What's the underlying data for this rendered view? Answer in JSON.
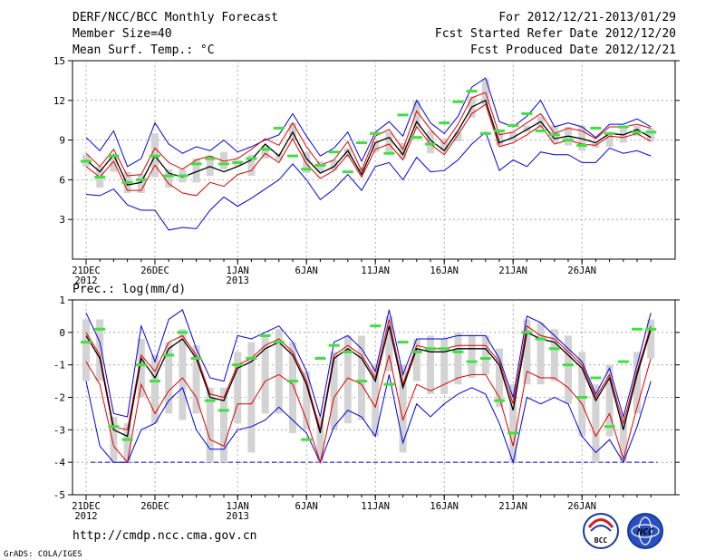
{
  "header": {
    "line1_left": "DERF/NCC/BCC Monthly Forecast",
    "line2_left": "Member Size=40",
    "line3_left": "Mean Surf. Temp.: °C",
    "line1_right": "For 2012/12/21-2013/01/29",
    "line2_right": "Fcst Started Refer Date 2012/12/20",
    "line3_right": "Fcst Produced Date 2012/12/21"
  },
  "precip_label": "Prec.: log(mm/d)",
  "footer": {
    "url": "http://cmdp.ncc.cma.gov.cn",
    "credit": "GrADS: COLA/IGES",
    "logo1_text": "BCC",
    "logo2_text": "NCC"
  },
  "colors": {
    "mean": "#000000",
    "envelope": "#0000e0",
    "quantile": "#e00000",
    "box": "#d3d3d3",
    "marker": "#40e040",
    "dashed": "#0000cc"
  },
  "chart_data": [
    {
      "type": "line",
      "title": "Mean Surf. Temp.: °C",
      "ylim": [
        0,
        15
      ],
      "yticks": [
        3,
        6,
        9,
        12,
        15
      ],
      "x_days": 40,
      "xtick_labels": [
        {
          "day": 0,
          "label": "21DEC",
          "sub": "2012"
        },
        {
          "day": 5,
          "label": "26DEC",
          "sub": ""
        },
        {
          "day": 11,
          "label": "1JAN",
          "sub": "2013"
        },
        {
          "day": 16,
          "label": "6JAN",
          "sub": ""
        },
        {
          "day": 21,
          "label": "11JAN",
          "sub": ""
        },
        {
          "day": 26,
          "label": "16JAN",
          "sub": ""
        },
        {
          "day": 31,
          "label": "21JAN",
          "sub": ""
        },
        {
          "day": 36,
          "label": "26JAN",
          "sub": ""
        }
      ],
      "series": [
        {
          "name": "max",
          "values": [
            9.2,
            8.2,
            9.7,
            7.0,
            7.6,
            10.3,
            8.7,
            8.0,
            8.5,
            8.2,
            9.0,
            8.1,
            8.5,
            9.0,
            9.4,
            11.0,
            9.3,
            7.8,
            8.4,
            9.6,
            7.4,
            9.6,
            10.4,
            9.3,
            12.0,
            10.3,
            9.5,
            10.8,
            13.0,
            13.7,
            10.4,
            10.0,
            10.8,
            12.0,
            10.0,
            10.3,
            10.0,
            9.2,
            10.2,
            10.2,
            10.6,
            10.0
          ]
        },
        {
          "name": "upper",
          "values": [
            8.0,
            7.0,
            8.3,
            6.3,
            6.4,
            8.4,
            7.3,
            6.8,
            7.5,
            7.8,
            7.4,
            7.6,
            8.3,
            9.1,
            8.6,
            10.3,
            8.5,
            7.1,
            7.5,
            8.9,
            6.7,
            9.3,
            9.8,
            8.3,
            11.2,
            9.8,
            8.7,
            10.2,
            12.2,
            12.6,
            9.4,
            9.6,
            10.3,
            11.0,
            9.5,
            9.9,
            9.7,
            9.1,
            10.0,
            10.0,
            10.2,
            9.9
          ]
        },
        {
          "name": "mean",
          "values": [
            7.5,
            6.6,
            7.9,
            5.6,
            5.8,
            7.8,
            6.5,
            6.2,
            6.6,
            7.0,
            6.6,
            7.0,
            7.5,
            8.7,
            7.8,
            9.6,
            7.6,
            6.5,
            7.0,
            8.2,
            6.4,
            8.8,
            9.2,
            7.9,
            10.4,
            9.0,
            8.2,
            9.7,
            11.5,
            12.0,
            8.8,
            9.2,
            9.8,
            10.4,
            9.1,
            9.3,
            9.1,
            8.8,
            9.5,
            9.4,
            9.8,
            9.2
          ]
        },
        {
          "name": "lower",
          "values": [
            7.0,
            6.2,
            7.4,
            5.2,
            5.2,
            7.1,
            5.7,
            5.0,
            4.8,
            5.8,
            5.5,
            6.4,
            6.7,
            8.0,
            7.3,
            9.1,
            7.2,
            6.1,
            6.7,
            7.9,
            6.2,
            8.3,
            8.7,
            7.5,
            10.0,
            8.7,
            7.9,
            9.4,
            11.0,
            11.7,
            8.5,
            8.8,
            9.4,
            10.1,
            8.7,
            9.0,
            8.7,
            8.6,
            9.3,
            9.2,
            9.5,
            8.9
          ]
        },
        {
          "name": "min",
          "values": [
            4.9,
            4.8,
            5.3,
            4.1,
            3.7,
            3.7,
            2.2,
            2.4,
            2.3,
            3.7,
            4.7,
            4.0,
            4.6,
            5.3,
            6.0,
            7.2,
            6.0,
            4.5,
            5.3,
            6.4,
            5.2,
            7.0,
            7.3,
            6.0,
            7.7,
            6.6,
            6.7,
            7.5,
            8.7,
            9.6,
            6.7,
            7.5,
            7.0,
            8.1,
            7.9,
            7.9,
            7.3,
            7.3,
            8.4,
            8.0,
            8.2,
            7.8
          ]
        },
        {
          "name": "q75",
          "values": [
            7.9,
            7.0,
            7.9,
            6.6,
            6.4,
            9.5,
            6.8,
            6.8,
            7.6,
            7.8,
            8.1,
            7.5,
            7.9,
            8.6,
            7.5,
            10.3,
            8.1,
            7.4,
            7.5,
            8.4,
            6.9,
            8.9,
            9.6,
            8.8,
            12.0,
            9.7,
            9.1,
            9.6,
            12.3,
            13.6,
            9.8,
            9.6,
            10.1,
            10.8,
            10.1,
            10.0,
            10.1,
            8.8,
            9.6,
            10.0,
            10.1,
            9.9
          ]
        },
        {
          "name": "q25",
          "values": [
            7.0,
            5.4,
            6.6,
            5.0,
            5.0,
            6.2,
            5.4,
            5.8,
            5.8,
            6.3,
            6.8,
            7.0,
            6.3,
            7.6,
            8.0,
            9.0,
            6.5,
            6.6,
            6.7,
            7.7,
            6.6,
            8.1,
            8.0,
            7.6,
            9.9,
            8.0,
            8.2,
            8.9,
            10.7,
            11.7,
            8.6,
            8.9,
            9.6,
            9.9,
            8.8,
            8.6,
            8.2,
            8.4,
            8.5,
            8.8,
            9.3,
            8.9
          ]
        },
        {
          "name": "median",
          "values": [
            7.4,
            6.2,
            7.8,
            5.8,
            6.0,
            7.8,
            6.3,
            6.3,
            7.2,
            7.6,
            7.2,
            7.3,
            7.6,
            8.3,
            9.9,
            7.8,
            6.8,
            7.1,
            8.1,
            6.6,
            8.8,
            9.5,
            8.0,
            10.9,
            9.2,
            8.7,
            10.3,
            11.9,
            12.7,
            9.5,
            9.7,
            10.1,
            11.0,
            9.7,
            9.4,
            9.0,
            8.6,
            9.9,
            9.5,
            10.0,
            9.6,
            9.6
          ]
        }
      ]
    },
    {
      "type": "line",
      "title": "Prec.: log(mm/d)",
      "ylim": [
        -5,
        1
      ],
      "yticks": [
        -5,
        -4,
        -3,
        -2,
        -1,
        0,
        1
      ],
      "dashed_line": -4,
      "x_days": 40,
      "xtick_labels": [
        {
          "day": 0,
          "label": "21DEC",
          "sub": "2012"
        },
        {
          "day": 5,
          "label": "26DEC",
          "sub": ""
        },
        {
          "day": 11,
          "label": "1JAN",
          "sub": "2013"
        },
        {
          "day": 16,
          "label": "6JAN",
          "sub": ""
        },
        {
          "day": 21,
          "label": "11JAN",
          "sub": ""
        },
        {
          "day": 26,
          "label": "16JAN",
          "sub": ""
        },
        {
          "day": 31,
          "label": "21JAN",
          "sub": ""
        },
        {
          "day": 36,
          "label": "26JAN",
          "sub": ""
        }
      ],
      "series": [
        {
          "name": "max",
          "values": [
            0.6,
            -0.3,
            -2.5,
            -2.6,
            0.2,
            -0.9,
            0.4,
            0.7,
            -0.5,
            -1.4,
            -1.5,
            -0.1,
            -0.2,
            0.0,
            0.2,
            -0.3,
            -1.2,
            -2.6,
            -0.3,
            -0.1,
            -0.5,
            -1.2,
            0.7,
            -1.3,
            -0.2,
            -0.2,
            -0.2,
            -0.1,
            -0.1,
            -0.1,
            -0.8,
            -2.0,
            0.5,
            0.3,
            -0.1,
            -0.5,
            -0.9,
            -1.9,
            -1.1,
            -2.6,
            -1.0,
            0.6
          ]
        },
        {
          "name": "upper",
          "values": [
            0.0,
            -0.7,
            -2.9,
            -3.0,
            -0.7,
            -1.2,
            -0.3,
            -0.1,
            -0.7,
            -1.9,
            -2.0,
            -1.0,
            -0.8,
            -0.4,
            -0.2,
            -0.6,
            -1.5,
            -3.0,
            -0.7,
            -0.4,
            -0.7,
            -1.4,
            0.4,
            -1.6,
            -0.4,
            -0.5,
            -0.5,
            -0.4,
            -0.4,
            -0.4,
            -0.9,
            -2.2,
            0.2,
            -0.1,
            -0.2,
            -0.6,
            -1.0,
            -2.0,
            -1.3,
            -2.8,
            -1.2,
            0.2
          ]
        },
        {
          "name": "mean",
          "values": [
            -0.1,
            -0.8,
            -3.0,
            -3.2,
            -0.8,
            -1.4,
            -0.5,
            -0.2,
            -0.8,
            -2.0,
            -2.1,
            -1.1,
            -0.9,
            -0.5,
            -0.3,
            -0.7,
            -1.6,
            -3.1,
            -0.8,
            -0.5,
            -0.8,
            -1.5,
            0.2,
            -1.7,
            -0.5,
            -0.6,
            -0.6,
            -0.5,
            -0.5,
            -0.5,
            -1.0,
            -2.4,
            0.0,
            -0.2,
            -0.3,
            -0.7,
            -1.1,
            -2.1,
            -1.4,
            -3.0,
            -1.3,
            0.1
          ]
        },
        {
          "name": "lower",
          "values": [
            -0.9,
            -1.6,
            -3.5,
            -4.0,
            -1.6,
            -2.5,
            -1.8,
            -1.4,
            -2.0,
            -3.3,
            -3.5,
            -2.2,
            -2.2,
            -1.5,
            -1.3,
            -1.6,
            -2.7,
            -4.0,
            -2.0,
            -1.4,
            -1.6,
            -2.3,
            -0.7,
            -2.7,
            -1.6,
            -1.8,
            -1.6,
            -1.4,
            -1.3,
            -1.3,
            -2.0,
            -3.5,
            -1.2,
            -1.4,
            -1.4,
            -1.7,
            -2.2,
            -3.2,
            -2.5,
            -3.9,
            -2.3,
            -0.8
          ]
        },
        {
          "name": "min",
          "values": [
            -1.5,
            -3.5,
            -4.0,
            -4.0,
            -3.0,
            -2.8,
            -2.1,
            -1.7,
            -3.0,
            -3.6,
            -3.6,
            -3.0,
            -2.9,
            -2.7,
            -2.3,
            -2.7,
            -3.1,
            -4.0,
            -2.9,
            -2.4,
            -2.6,
            -3.2,
            -1.3,
            -3.4,
            -2.2,
            -2.6,
            -2.2,
            -1.9,
            -1.7,
            -1.9,
            -2.8,
            -4.0,
            -2.0,
            -2.2,
            -2.0,
            -2.2,
            -3.2,
            -3.7,
            -3.3,
            -4.0,
            -2.9,
            -1.5
          ]
        },
        {
          "name": "q75",
          "values": [
            0.4,
            0.4,
            -2.6,
            -2.8,
            -0.2,
            -0.7,
            -0.3,
            0.1,
            -0.4,
            -1.7,
            -1.7,
            -0.6,
            -0.3,
            -0.1,
            0.1,
            -0.3,
            -1.2,
            -2.6,
            -0.6,
            -0.1,
            -0.1,
            -1.0,
            0.5,
            -1.0,
            -0.2,
            -0.1,
            -0.2,
            0.0,
            -0.1,
            -0.1,
            -0.5,
            -1.6,
            0.4,
            0.3,
            0.1,
            -0.1,
            -0.6,
            -1.6,
            -1.0,
            -2.6,
            -0.6,
            0.4
          ]
        },
        {
          "name": "q25",
          "values": [
            -1.5,
            -1.5,
            -4.0,
            -4.0,
            -2.0,
            -2.8,
            -2.5,
            -2.7,
            -2.5,
            -4.0,
            -4.0,
            -2.8,
            -3.7,
            -2.5,
            -2.5,
            -3.1,
            -3.0,
            -4.0,
            -3.0,
            -2.8,
            -2.7,
            -3.2,
            -1.2,
            -3.7,
            -1.5,
            -1.9,
            -1.9,
            -1.6,
            -1.4,
            -1.3,
            -2.3,
            -4.0,
            -1.6,
            -1.6,
            -1.5,
            -2.2,
            -3.2,
            -4.0,
            -3.2,
            -4.0,
            -2.5,
            -0.8
          ]
        },
        {
          "name": "median",
          "values": [
            -0.3,
            0.1,
            -2.9,
            -3.3,
            -1.0,
            -1.5,
            -0.7,
            0.0,
            -0.8,
            -2.1,
            -2.4,
            -1.0,
            -0.8,
            -0.1,
            -0.3,
            -1.5,
            -3.3,
            -0.8,
            -0.4,
            -0.6,
            -1.5,
            0.2,
            -1.6,
            -0.3,
            -0.6,
            -0.5,
            -0.5,
            -0.6,
            -0.9,
            -0.8,
            -2.1,
            -3.1,
            0.0,
            -0.2,
            -0.5,
            -1.0,
            -2.0,
            -1.4,
            -2.9,
            -0.9,
            0.1,
            0.1
          ]
        }
      ]
    }
  ]
}
